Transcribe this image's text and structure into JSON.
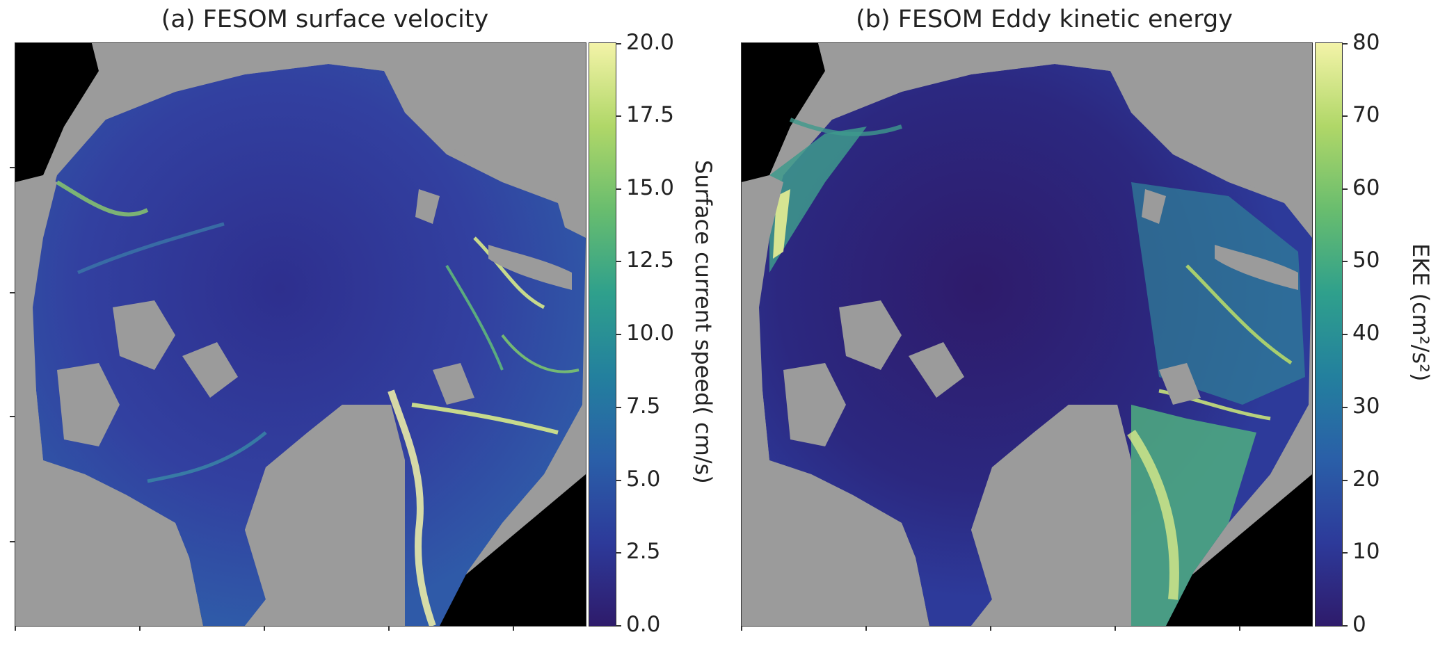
{
  "panels": [
    {
      "title": "(a) FESOM surface velocity",
      "colorbar": {
        "label": "Surface current speed( cm/s)",
        "ticks": [
          "0.0",
          "2.5",
          "5.0",
          "7.5",
          "10.0",
          "12.5",
          "15.0",
          "17.5",
          "20.0"
        ],
        "min": 0,
        "max": 20,
        "colormap": [
          "#2e1b6b",
          "#2d3a9a",
          "#2a5fa8",
          "#23809e",
          "#2fa08c",
          "#69bd6e",
          "#b0d768",
          "#f3f3a8"
        ]
      }
    },
    {
      "title": "(b) FESOM Eddy kinetic energy",
      "colorbar": {
        "label": "EKE (cm²/s²)",
        "ticks": [
          "0",
          "10",
          "20",
          "30",
          "40",
          "50",
          "60",
          "70",
          "80"
        ],
        "min": 0,
        "max": 80,
        "colormap": [
          "#2e1b6b",
          "#2d3a9a",
          "#2a5fa8",
          "#23809e",
          "#2fa08c",
          "#69bd6e",
          "#b0d768",
          "#f3f3a8"
        ]
      }
    }
  ],
  "colors": {
    "land": "#9b9b9b",
    "no_data": "#000000",
    "ocean_low": "#2e2f8e",
    "ocean_high": "#f3f3a8"
  }
}
